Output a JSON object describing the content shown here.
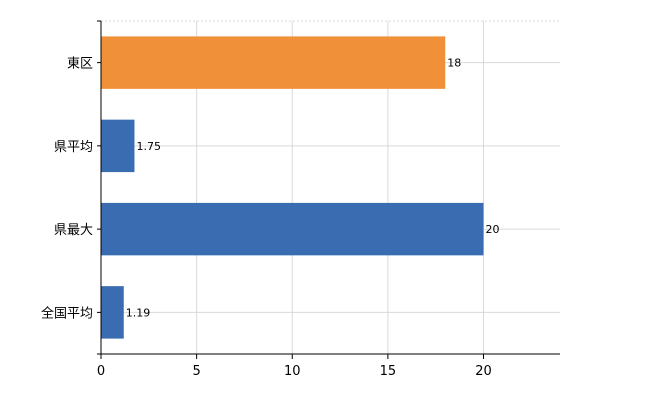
{
  "chart_data": {
    "type": "bar",
    "orientation": "horizontal",
    "categories": [
      "東区",
      "県平均",
      "県最大",
      "全国平均"
    ],
    "values": [
      18,
      1.75,
      20,
      1.19
    ],
    "value_labels": [
      "18",
      "1.75",
      "20",
      "1.19"
    ],
    "bar_colors": [
      "#F0913A",
      "#3A6CB1",
      "#3A6CB1",
      "#3A6CB1"
    ],
    "x_ticks": [
      0,
      5,
      10,
      15,
      20
    ],
    "x_tick_labels": [
      "0",
      "5",
      "10",
      "15",
      "20"
    ],
    "xlim": [
      0,
      24
    ],
    "title": "",
    "xlabel": "",
    "ylabel": "",
    "grid": true,
    "legend": "none"
  }
}
